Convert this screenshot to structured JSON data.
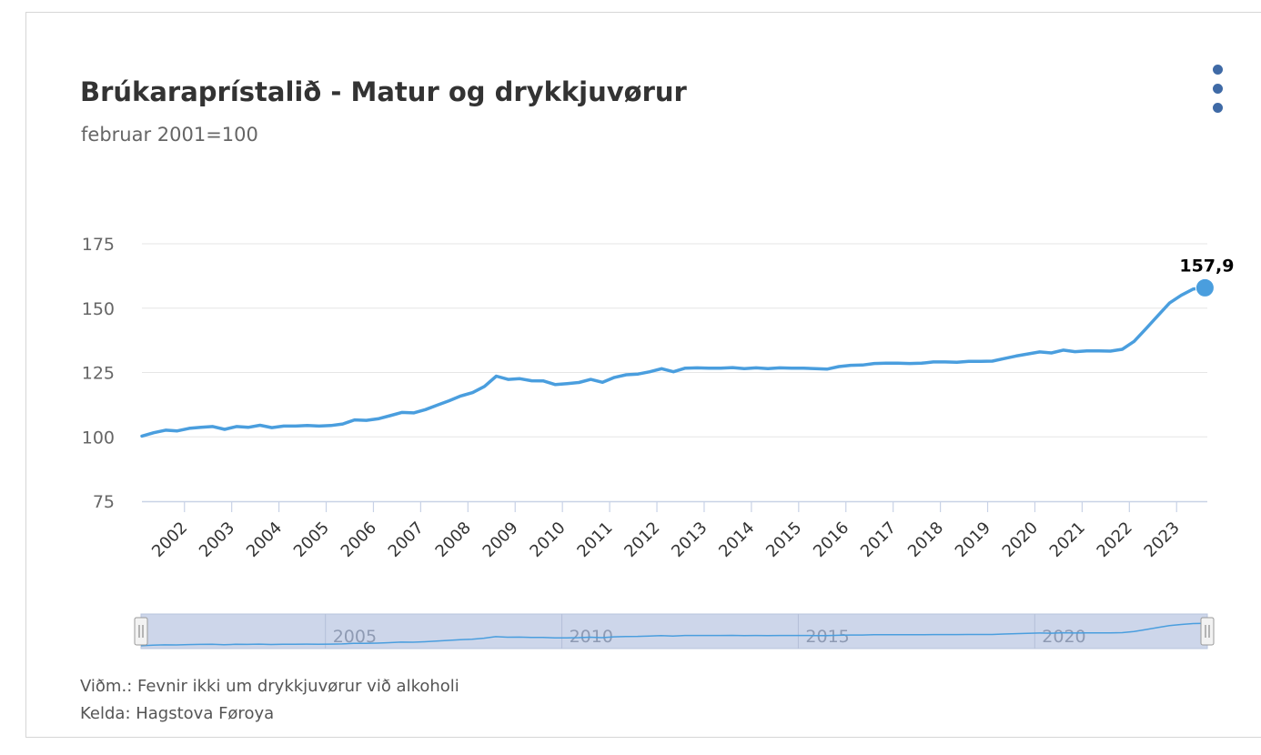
{
  "title": "Brúkaraprístalið - Matur og drykkjuvørur",
  "subtitle": "februar 2001=100",
  "footnote": "Viðm.: Fevnir ikki um drykkjuvørur við alkoholi",
  "source": "Kelda: Hagstova Føroya",
  "colors": {
    "line": "#4a9ede",
    "navigator_fill": "#cdd6ea",
    "menu_dots": "#3f6aa6"
  },
  "chart_data": {
    "type": "line",
    "title": "Brúkaraprístalið - Matur og drykkjuvørur",
    "subtitle": "februar 2001=100",
    "ylim": [
      75,
      175
    ],
    "yticks": [
      75,
      100,
      125,
      150,
      175
    ],
    "ytick_labels": [
      "75",
      "100",
      "125",
      "150",
      "175"
    ],
    "xlim": [
      2001.1,
      2023.65
    ],
    "xticks": [
      2002,
      2003,
      2004,
      2005,
      2006,
      2007,
      2008,
      2009,
      2010,
      2011,
      2012,
      2013,
      2014,
      2015,
      2016,
      2017,
      2018,
      2019,
      2020,
      2021,
      2022,
      2023
    ],
    "xtick_labels": [
      "2002",
      "2003",
      "2004",
      "2005",
      "2006",
      "2007",
      "2008",
      "2009",
      "2010",
      "2011",
      "2012",
      "2013",
      "2014",
      "2015",
      "2016",
      "2017",
      "2018",
      "2019",
      "2020",
      "2021",
      "2022",
      "2023"
    ],
    "navigator_labels": [
      "2005",
      "2010",
      "2015",
      "2020"
    ],
    "navigator_ticks": [
      2005,
      2010,
      2015,
      2020
    ],
    "last_label": "157,9",
    "series": [
      {
        "x": [
          2001.1,
          2001.35,
          2001.6,
          2001.85,
          2002.1,
          2002.35,
          2002.6,
          2002.85,
          2003.1,
          2003.35,
          2003.6,
          2003.85,
          2004.1,
          2004.35,
          2004.6,
          2004.85,
          2005.1,
          2005.35,
          2005.6,
          2005.85,
          2006.1,
          2006.35,
          2006.6,
          2006.85,
          2007.1,
          2007.35,
          2007.6,
          2007.85,
          2008.1,
          2008.35,
          2008.6,
          2008.85,
          2009.1,
          2009.35,
          2009.6,
          2009.85,
          2010.1,
          2010.35,
          2010.6,
          2010.85,
          2011.1,
          2011.35,
          2011.6,
          2011.85,
          2012.1,
          2012.35,
          2012.6,
          2012.85,
          2013.1,
          2013.35,
          2013.6,
          2013.85,
          2014.1,
          2014.35,
          2014.6,
          2014.85,
          2015.1,
          2015.35,
          2015.6,
          2015.85,
          2016.1,
          2016.35,
          2016.6,
          2016.85,
          2017.1,
          2017.35,
          2017.6,
          2017.85,
          2018.1,
          2018.35,
          2018.6,
          2018.85,
          2019.1,
          2019.35,
          2019.6,
          2019.85,
          2020.1,
          2020.35,
          2020.6,
          2020.85,
          2021.1,
          2021.35,
          2021.6,
          2021.85,
          2022.1,
          2022.35,
          2022.6,
          2022.85,
          2023.1,
          2023.35,
          2023.6
        ],
        "values": [
          100.3,
          101.6,
          102.6,
          102.3,
          103.3,
          103.7,
          104.0,
          102.9,
          104.0,
          103.7,
          104.5,
          103.6,
          104.2,
          104.2,
          104.4,
          104.2,
          104.4,
          105.0,
          106.6,
          106.4,
          107.0,
          108.2,
          109.5,
          109.3,
          110.6,
          112.3,
          114.0,
          115.9,
          117.2,
          119.6,
          123.6,
          122.3,
          122.6,
          121.8,
          121.7,
          120.3,
          120.7,
          121.1,
          122.3,
          121.2,
          123.1,
          124.1,
          124.4,
          125.3,
          126.5,
          125.3,
          126.7,
          126.8,
          126.7,
          126.7,
          126.9,
          126.5,
          126.8,
          126.5,
          126.8,
          126.7,
          126.7,
          126.5,
          126.3,
          127.3,
          127.8,
          127.9,
          128.5,
          128.6,
          128.6,
          128.5,
          128.6,
          129.1,
          129.1,
          129.0,
          129.3,
          129.3,
          129.4,
          130.4,
          131.4,
          132.2,
          133.0,
          132.6,
          133.7,
          133.1,
          133.4,
          133.4,
          133.3,
          134.0,
          137.1,
          142.0,
          147.0,
          152.0,
          155.0,
          157.4,
          157.9
        ]
      }
    ]
  }
}
